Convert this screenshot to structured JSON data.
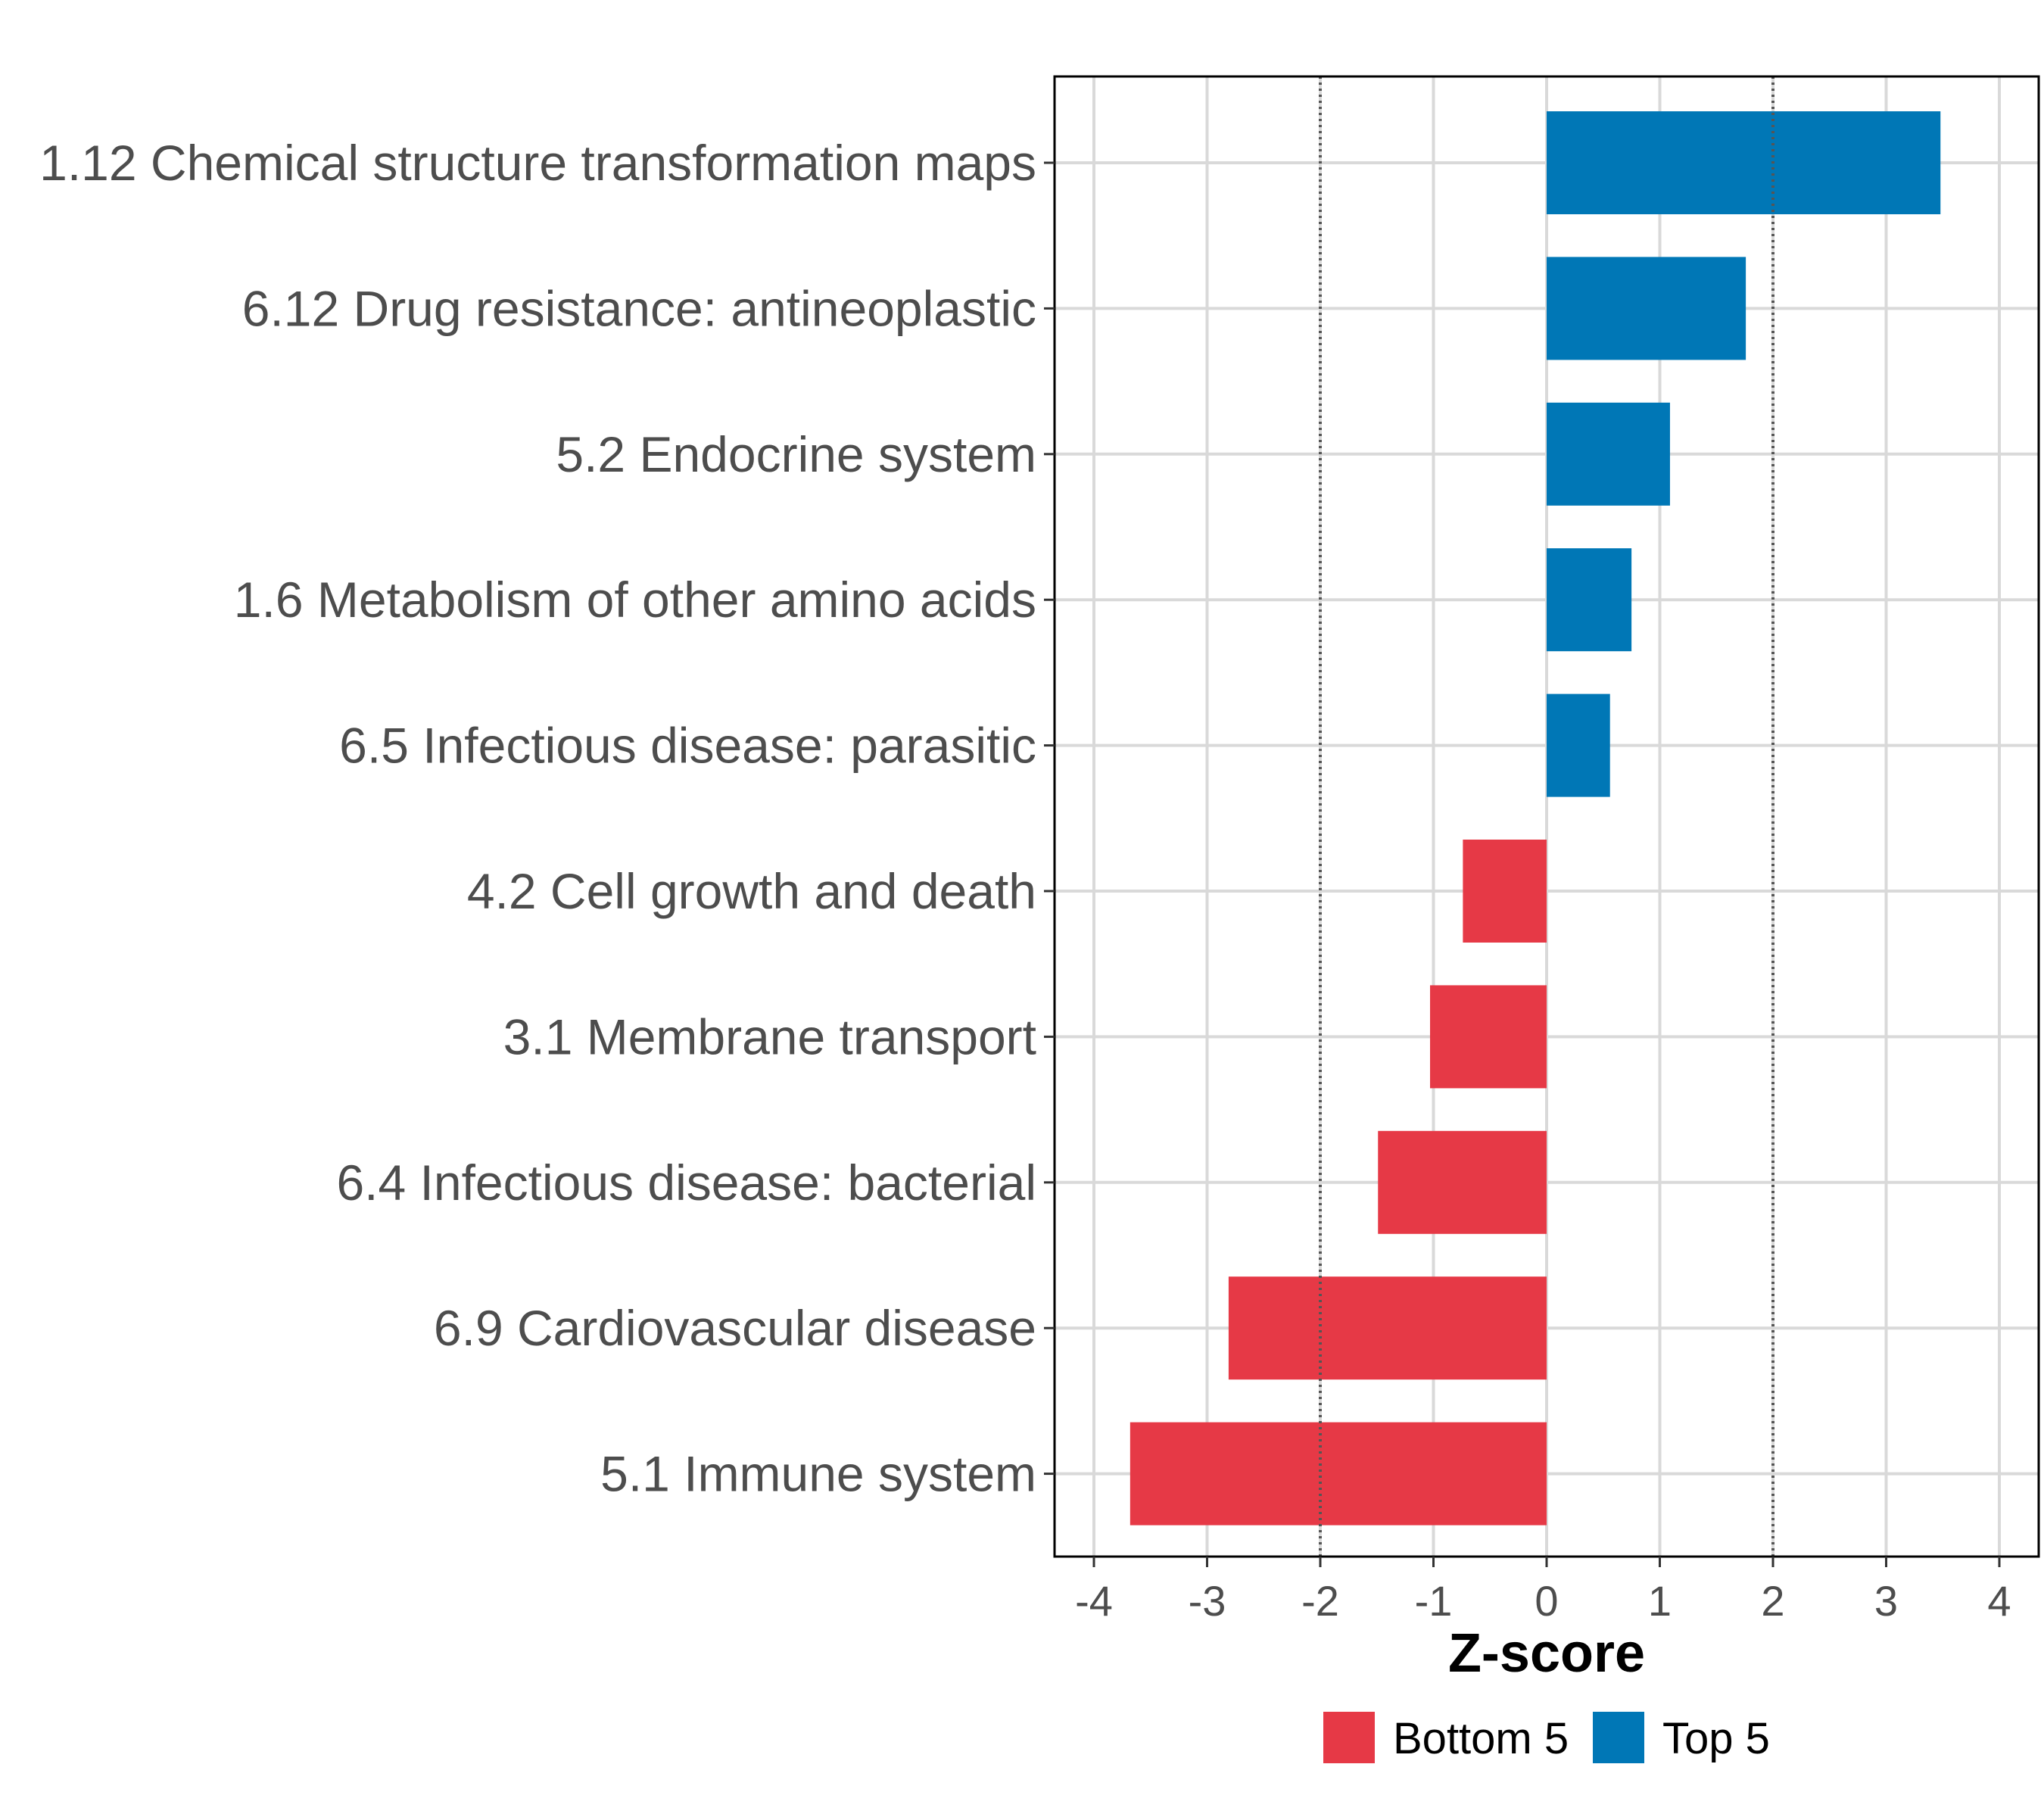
{
  "chart_data": {
    "type": "bar",
    "orientation": "horizontal",
    "categories": [
      "1.12 Chemical structure transformation maps",
      "6.12 Drug resistance: antineoplastic",
      "5.2 Endocrine system",
      "1.6 Metabolism of other amino acids",
      "6.5 Infectious disease: parasitic",
      "4.2 Cell growth and death",
      "3.1 Membrane transport",
      "6.4 Infectious disease: bacterial",
      "6.9 Cardiovascular disease",
      "5.1 Immune system"
    ],
    "values": [
      3.48,
      1.76,
      1.09,
      0.75,
      0.56,
      -0.74,
      -1.03,
      -1.49,
      -2.81,
      -3.68
    ],
    "groups": [
      "Top 5",
      "Top 5",
      "Top 5",
      "Top 5",
      "Top 5",
      "Bottom 5",
      "Bottom 5",
      "Bottom 5",
      "Bottom 5",
      "Bottom 5"
    ],
    "xlabel": "Z-score",
    "ylabel": "",
    "xlim": [
      -4.35,
      4.35
    ],
    "xticks": [
      -4,
      -3,
      -2,
      -1,
      0,
      1,
      2,
      3,
      4
    ],
    "xtick_labels": [
      "-4",
      "-3",
      "-2",
      "-1",
      "0",
      "1",
      "2",
      "3",
      "4"
    ],
    "reference_lines": [
      -2,
      2
    ],
    "grid": true,
    "legend": {
      "position": "bottom",
      "entries": [
        {
          "label": "Bottom 5",
          "color": "#e63946"
        },
        {
          "label": "Top 5",
          "color": "#0077b6"
        }
      ]
    },
    "colors": {
      "Top 5": "#0077b6",
      "Bottom 5": "#e63946"
    }
  }
}
